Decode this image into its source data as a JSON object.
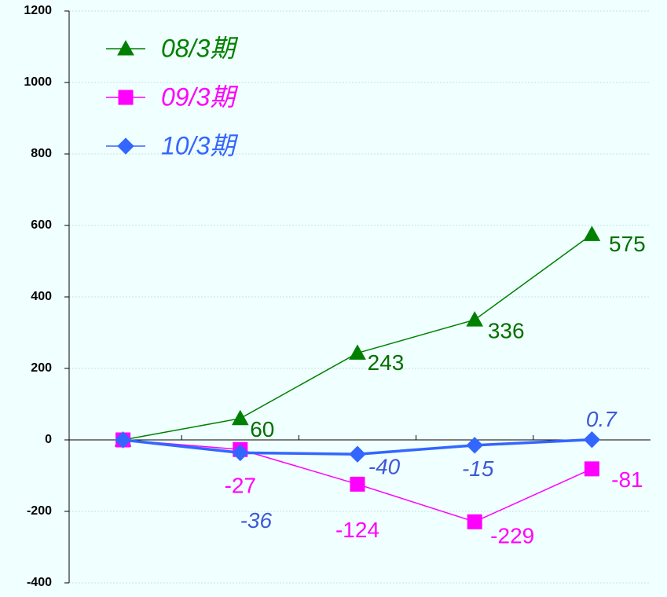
{
  "chart_data": {
    "type": "line",
    "categories": [
      null,
      null,
      null,
      null,
      null
    ],
    "series": [
      {
        "name": "08/3期",
        "color": "#008000",
        "marker": "triangle",
        "values": [
          0,
          60,
          243,
          336,
          575
        ]
      },
      {
        "name": "09/3期",
        "color": "#ff00ff",
        "marker": "square",
        "values": [
          0,
          -27,
          -124,
          -229,
          -81
        ]
      },
      {
        "name": "10/3期",
        "color": "#3366ff",
        "marker": "diamond",
        "values": [
          0,
          -36,
          -40,
          -15,
          0.7
        ]
      }
    ],
    "ylim": [
      -400,
      1200
    ],
    "yticks": [
      -400,
      -200,
      0,
      200,
      400,
      600,
      800,
      1000,
      1200
    ],
    "grid": true,
    "legend": "upper left"
  }
}
